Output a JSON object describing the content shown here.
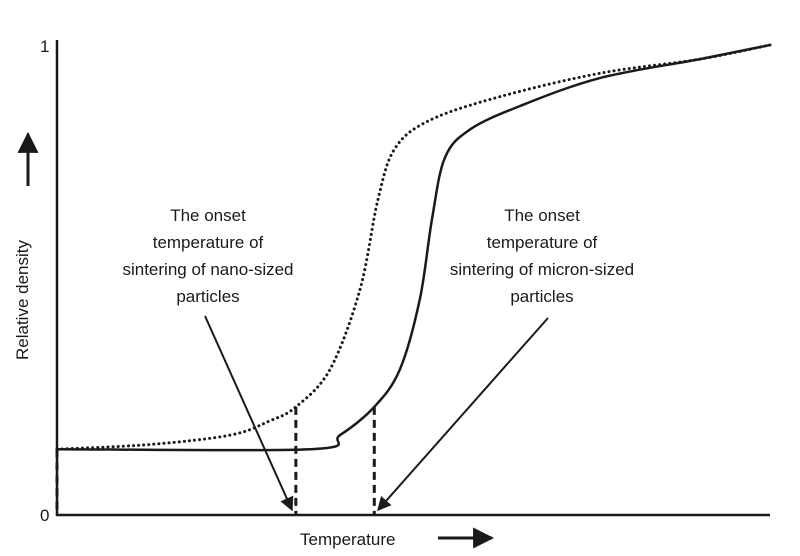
{
  "chart_data": {
    "type": "line",
    "xlabel": "Temperature",
    "ylabel": "Relative density",
    "ylim": [
      0,
      1
    ],
    "xlim": [
      0,
      100
    ],
    "y_ticks": [
      "0",
      "1"
    ],
    "grid": false,
    "series": [
      {
        "style": "solid",
        "color": "#1a1a1a",
        "x": [
          0,
          35.5,
          39.7,
          44.5,
          48.1,
          50.9,
          52.6,
          54.4,
          57.9,
          64.9,
          76.2,
          90.2,
          100
        ],
        "y": [
          0.14,
          0.14,
          0.17,
          0.23,
          0.31,
          0.46,
          0.63,
          0.76,
          0.82,
          0.87,
          0.93,
          0.97,
          1.0
        ]
      },
      {
        "style": "dotted",
        "color": "#1a1a1a",
        "x": [
          0,
          13,
          24.3,
          29.8,
          33.5,
          38.3,
          42.5,
          45,
          47.4,
          52.3,
          62.1,
          76.2,
          90.2,
          100
        ],
        "y": [
          0.14,
          0.15,
          0.17,
          0.2,
          0.23,
          0.31,
          0.48,
          0.67,
          0.78,
          0.84,
          0.89,
          0.94,
          0.97,
          1.0
        ]
      }
    ],
    "reference_lines": [
      {
        "x": 0,
        "y": 0.14
      },
      {
        "x": 33.5,
        "y": 0.23
      },
      {
        "x": 44.5,
        "y": 0.23
      }
    ],
    "annotations": [
      {
        "lines": [
          "The onset",
          "temperature of",
          "sintering of nano-sized",
          "particles"
        ],
        "points_to_x": 33.5
      },
      {
        "lines": [
          "The onset",
          "temperature of",
          "sintering of micron-sized",
          "particles"
        ],
        "points_to_x": 44.5
      }
    ]
  }
}
